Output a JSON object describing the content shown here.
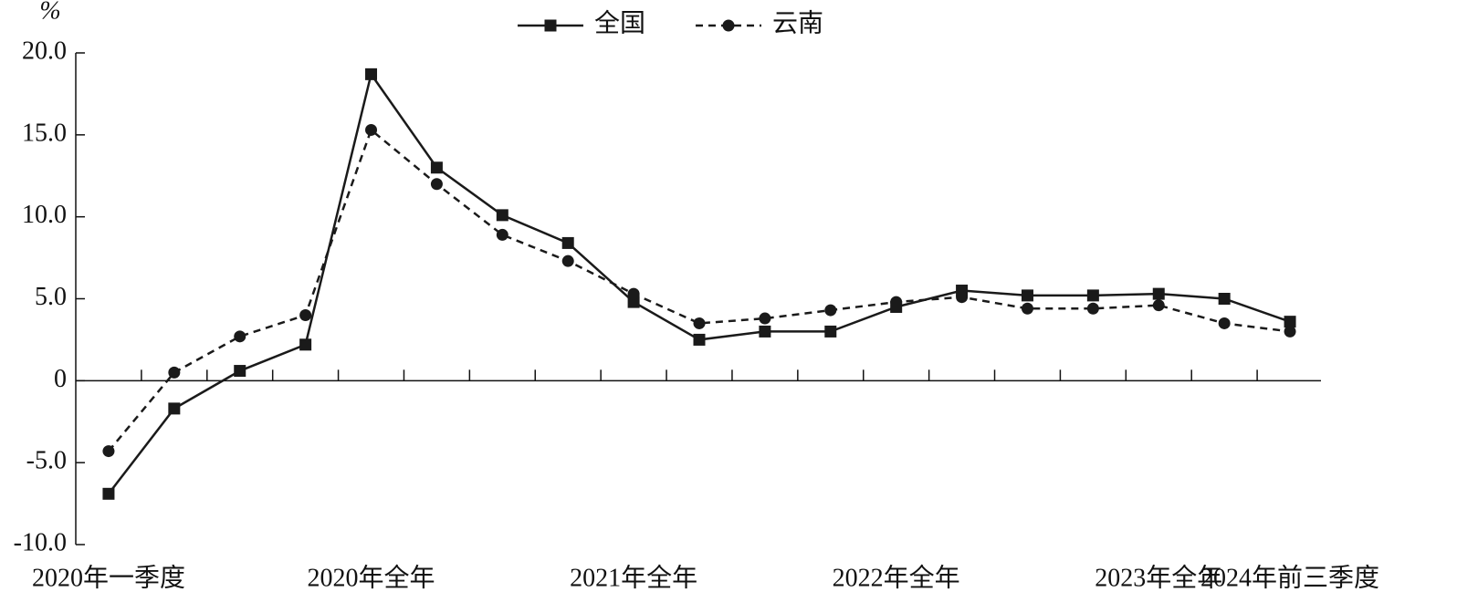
{
  "chart_data": {
    "type": "line",
    "y_unit": "%",
    "categories": [
      "2020年一季度",
      null,
      null,
      null,
      "2020年全年",
      null,
      null,
      null,
      "2021年全年",
      null,
      null,
      null,
      "2022年全年",
      null,
      null,
      null,
      "2023年全年",
      null,
      "2024年前三季度"
    ],
    "series": [
      {
        "name": "全国",
        "color": "#1a1a1a",
        "marker": "square",
        "dash": false,
        "values": [
          -6.9,
          -1.7,
          0.6,
          2.2,
          18.7,
          13.0,
          10.1,
          8.4,
          4.8,
          2.5,
          3.0,
          3.0,
          4.5,
          5.5,
          5.2,
          5.2,
          5.3,
          5.0,
          3.6
        ]
      },
      {
        "name": "云南",
        "color": "#1a1a1a",
        "marker": "circle",
        "dash": true,
        "values": [
          -4.3,
          0.5,
          2.7,
          4.0,
          15.3,
          12.0,
          8.9,
          7.3,
          5.3,
          3.5,
          3.8,
          4.3,
          4.8,
          5.1,
          4.4,
          4.4,
          4.6,
          3.5,
          3.0
        ]
      }
    ],
    "ylim": [
      -10,
      20
    ],
    "yticks": [
      {
        "value": 20,
        "label": "20.0"
      },
      {
        "value": 15,
        "label": "15.0"
      },
      {
        "value": 10,
        "label": "10.0"
      },
      {
        "value": 5,
        "label": "5.0"
      },
      0,
      {
        "value": -5,
        "label": "-5.0"
      },
      {
        "value": -10,
        "label": "-10.0"
      }
    ],
    "legend": "top"
  }
}
